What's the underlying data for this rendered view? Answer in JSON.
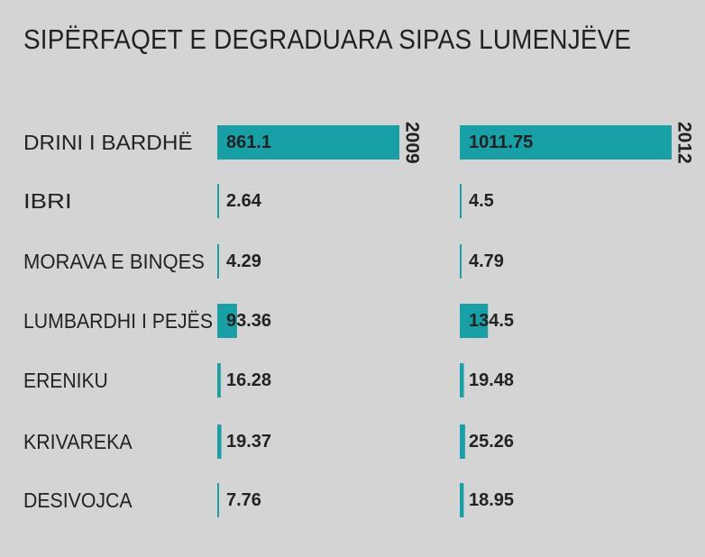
{
  "title": "SIPËRFAQET E DEGRADUARA SIPAS LUMENJËVE",
  "colors": {
    "background": "#d4d4d4",
    "bar": "#17a0a6",
    "text": "#222222"
  },
  "chart_data": {
    "type": "bar",
    "orientation": "horizontal",
    "title": "SIPËRFAQET E DEGRADUARA SIPAS LUMENJËVE",
    "categories": [
      "DRINI I BARDHË",
      "IBRI",
      "MORAVA E BINQES",
      "LUMBARDHI I PEJËS",
      "ERENIKU",
      "KRIVAREKA",
      "DESIVOJCA"
    ],
    "series": [
      {
        "name": "2009",
        "values": [
          861.1,
          2.64,
          4.29,
          93.36,
          16.28,
          19.37,
          7.76
        ]
      },
      {
        "name": "2012",
        "values": [
          1011.75,
          4.5,
          4.79,
          134.5,
          19.48,
          25.26,
          18.95
        ]
      }
    ],
    "value_labels": [
      [
        "861.1",
        "2.64",
        "4.29",
        "93.36",
        "16.28",
        "19.37",
        "7.76"
      ],
      [
        "1011.75",
        "4.5",
        "4.79",
        "134.5",
        "19.48",
        "25.26",
        "18.95"
      ]
    ],
    "xlabel": "",
    "ylabel": "",
    "grid": false,
    "legend": "none"
  }
}
